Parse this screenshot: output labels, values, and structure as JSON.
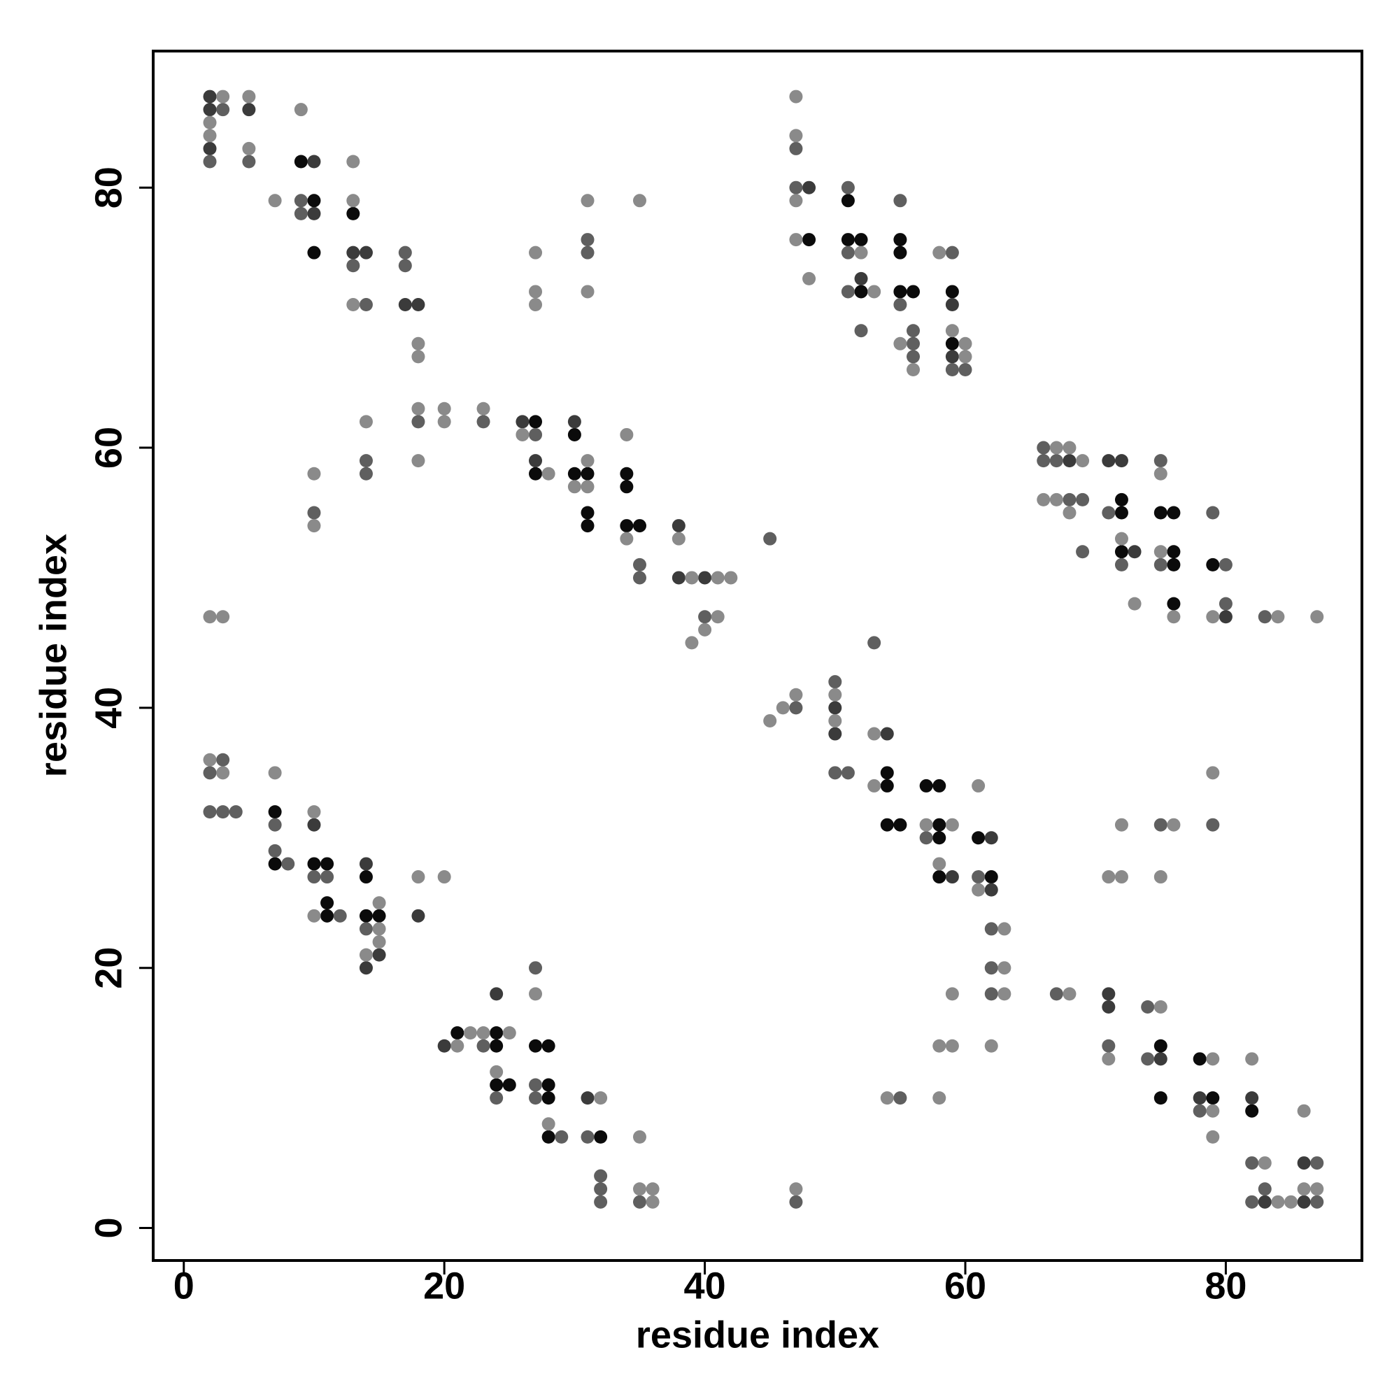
{
  "chart_data": {
    "type": "scatter",
    "x_label": "residue index",
    "y_label": "residue index",
    "xlim": [
      -2.35,
      90.45
    ],
    "ylim": [
      -2.5,
      90.5
    ],
    "xticks": [
      0,
      20,
      40,
      60,
      80
    ],
    "yticks": [
      0,
      20,
      40,
      60,
      80
    ],
    "series": [
      {
        "color": "#0b0b0b",
        "x": [
          9,
          10,
          10,
          13,
          27,
          27,
          30,
          30,
          31,
          31,
          31,
          34,
          34,
          34,
          35,
          48,
          51,
          51,
          52,
          52,
          55,
          55,
          55,
          56,
          59,
          59,
          72,
          72,
          72,
          75,
          76,
          76,
          76,
          76,
          79,
          54,
          54,
          54,
          55,
          57,
          58,
          58,
          58,
          58,
          61,
          62,
          75,
          75,
          78,
          79,
          82,
          7,
          7,
          10,
          11,
          11,
          11,
          14,
          14,
          15,
          21,
          24,
          24,
          24,
          25,
          27,
          28,
          28,
          28,
          28,
          32
        ],
        "y": [
          82,
          79,
          75,
          78,
          62,
          58,
          61,
          58,
          58,
          55,
          54,
          58,
          57,
          54,
          54,
          76,
          79,
          76,
          76,
          72,
          76,
          75,
          72,
          72,
          72,
          68,
          56,
          55,
          52,
          55,
          55,
          52,
          51,
          48,
          51,
          35,
          34,
          31,
          31,
          34,
          34,
          31,
          30,
          27,
          30,
          27,
          14,
          10,
          13,
          10,
          9,
          32,
          28,
          28,
          28,
          25,
          24,
          27,
          24,
          24,
          15,
          15,
          14,
          11,
          11,
          14,
          14,
          11,
          10,
          7,
          7
        ]
      },
      {
        "color": "#3b3b3b",
        "x": [
          2,
          2,
          2,
          5,
          10,
          10,
          13,
          14,
          17,
          18,
          26,
          27,
          30,
          38,
          38,
          40,
          48,
          52,
          59,
          59,
          68,
          71,
          72,
          73,
          80,
          50,
          50,
          54,
          59,
          62,
          62,
          71,
          71,
          75,
          78,
          82,
          83,
          86,
          86,
          10,
          14,
          14,
          15,
          18,
          20,
          24,
          31
        ],
        "y": [
          87,
          86,
          83,
          86,
          82,
          78,
          75,
          75,
          71,
          71,
          62,
          59,
          62,
          54,
          50,
          50,
          80,
          73,
          71,
          67,
          59,
          59,
          59,
          52,
          47,
          40,
          38,
          38,
          27,
          30,
          26,
          18,
          17,
          13,
          10,
          10,
          2,
          5,
          2,
          31,
          28,
          20,
          21,
          24,
          14,
          18,
          10
        ]
      },
      {
        "color": "#5f5f5f",
        "x": [
          2,
          3,
          5,
          9,
          9,
          13,
          14,
          17,
          17,
          18,
          14,
          14,
          10,
          23,
          27,
          31,
          31,
          35,
          35,
          40,
          45,
          47,
          47,
          47,
          51,
          51,
          51,
          52,
          55,
          55,
          56,
          56,
          56,
          59,
          59,
          60,
          66,
          66,
          67,
          68,
          69,
          69,
          71,
          72,
          75,
          75,
          79,
          80,
          80,
          83,
          47,
          50,
          50,
          51,
          53,
          57,
          61,
          62,
          62,
          62,
          55,
          67,
          71,
          74,
          74,
          75,
          78,
          79,
          82,
          82,
          83,
          87,
          87,
          2,
          2,
          3,
          3,
          4,
          7,
          7,
          8,
          10,
          11,
          12,
          14,
          23,
          24,
          27,
          27,
          27,
          29,
          31,
          32,
          32,
          32,
          35
        ],
        "y": [
          82,
          86,
          82,
          79,
          78,
          74,
          71,
          75,
          74,
          62,
          59,
          58,
          55,
          62,
          61,
          76,
          75,
          51,
          50,
          47,
          53,
          83,
          80,
          2,
          80,
          75,
          72,
          69,
          79,
          71,
          69,
          68,
          67,
          75,
          66,
          66,
          60,
          59,
          59,
          56,
          56,
          52,
          55,
          51,
          59,
          51,
          55,
          51,
          48,
          47,
          40,
          42,
          35,
          35,
          45,
          30,
          27,
          23,
          20,
          18,
          10,
          18,
          14,
          17,
          13,
          31,
          9,
          31,
          5,
          2,
          3,
          5,
          2,
          35,
          32,
          36,
          32,
          32,
          31,
          29,
          28,
          27,
          27,
          24,
          23,
          14,
          10,
          20,
          11,
          10,
          7,
          7,
          4,
          3,
          2,
          2
        ]
      },
      {
        "color": "#8a8a8a",
        "x": [
          2,
          2,
          3,
          5,
          5,
          7,
          9,
          13,
          13,
          13,
          18,
          18,
          18,
          18,
          14,
          10,
          10,
          20,
          20,
          23,
          26,
          27,
          27,
          27,
          28,
          30,
          31,
          31,
          31,
          31,
          34,
          34,
          35,
          38,
          39,
          39,
          40,
          41,
          41,
          42,
          45,
          2,
          3,
          46,
          47,
          47,
          47,
          47,
          47,
          47,
          48,
          52,
          53,
          55,
          56,
          58,
          59,
          60,
          60,
          66,
          67,
          67,
          68,
          68,
          69,
          72,
          73,
          75,
          75,
          76,
          79,
          84,
          87,
          50,
          50,
          53,
          53,
          57,
          58,
          58,
          58,
          59,
          59,
          59,
          61,
          61,
          62,
          63,
          63,
          63,
          54,
          68,
          71,
          71,
          72,
          72,
          75,
          75,
          76,
          79,
          79,
          79,
          79,
          82,
          83,
          84,
          85,
          86,
          86,
          87,
          2,
          3,
          7,
          10,
          10,
          14,
          15,
          15,
          15,
          18,
          20,
          21,
          22,
          23,
          24,
          25,
          27,
          28,
          32,
          35,
          35,
          36,
          36
        ],
        "y": [
          85,
          84,
          87,
          87,
          83,
          79,
          86,
          82,
          79,
          71,
          68,
          67,
          63,
          59,
          62,
          58,
          54,
          63,
          62,
          63,
          61,
          75,
          72,
          71,
          58,
          57,
          79,
          72,
          59,
          57,
          61,
          53,
          79,
          53,
          50,
          45,
          46,
          50,
          47,
          50,
          39,
          47,
          47,
          40,
          41,
          87,
          84,
          79,
          76,
          3,
          73,
          75,
          72,
          68,
          66,
          75,
          69,
          68,
          67,
          56,
          60,
          56,
          60,
          55,
          59,
          53,
          48,
          58,
          52,
          47,
          47,
          47,
          47,
          41,
          39,
          38,
          34,
          31,
          28,
          14,
          10,
          31,
          18,
          14,
          34,
          26,
          14,
          23,
          20,
          18,
          10,
          18,
          27,
          13,
          31,
          27,
          27,
          17,
          31,
          35,
          13,
          9,
          7,
          13,
          5,
          2,
          2,
          9,
          3,
          3,
          36,
          35,
          35,
          32,
          24,
          21,
          25,
          23,
          22,
          27,
          27,
          14,
          15,
          15,
          12,
          15,
          18,
          8,
          10,
          7,
          3,
          3,
          2
        ]
      }
    ]
  }
}
